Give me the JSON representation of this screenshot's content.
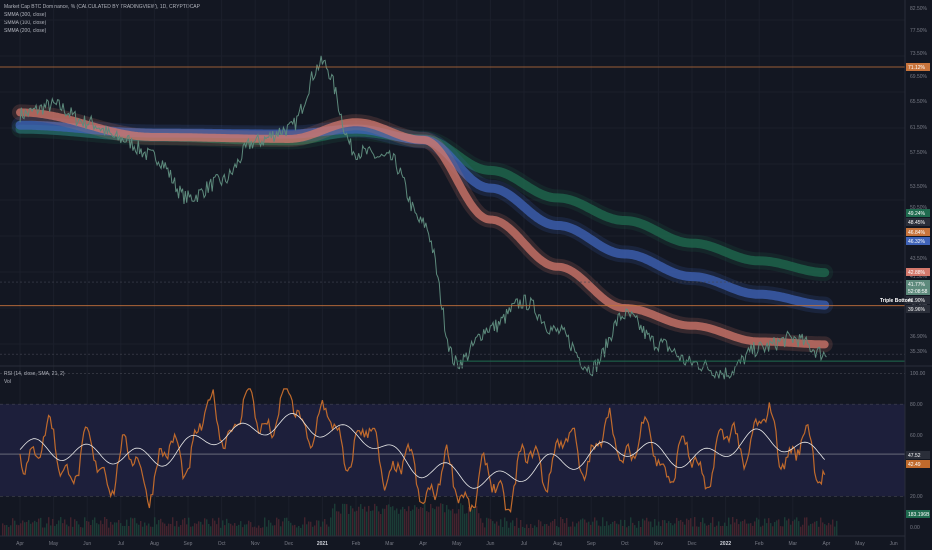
{
  "header": {
    "title": "Market Cap BTC Dominance, % (CALCULATED BY TRADINGVIEW), 1D, CRYPTOCAP",
    "indicators": [
      "SMMA (300, close)",
      "SMMA (100, close)",
      "SMMA (200, close)"
    ]
  },
  "rsi_header": {
    "title": "RSI (14, close, SMA, 21, 2)",
    "vol": "Vol"
  },
  "annotation": {
    "triple_bottom": "Triple Bottom"
  },
  "colors": {
    "background": "#131722",
    "price": "#5d8a7c",
    "smma100": "#d4786c",
    "smma200": "#3f63b8",
    "smma300": "#1f6b4f",
    "resistance": "#c8743c",
    "rsi": "#c06a2c",
    "rsi_ma": "#e8e8e8",
    "rsi_band": "#1d1f3b"
  },
  "price_axis": {
    "ticks": [
      "82.50%",
      "77.50%",
      "73.50%",
      "69.50%",
      "65.50%",
      "61.50%",
      "57.50%",
      "53.50%",
      "50.50%",
      "46.50%",
      "43.50%",
      "41.50%",
      "38.50%",
      "36.90%",
      "35.30%"
    ],
    "badges": [
      {
        "text": "71.12%",
        "color": "#c8743c"
      },
      {
        "text": "49.24%",
        "color": "#1f6b4f"
      },
      {
        "text": "48.45%",
        "color": "#2a2e39"
      },
      {
        "text": "46.84%",
        "color": "#c8743c"
      },
      {
        "text": "46.32%",
        "color": "#3f63b8"
      },
      {
        "text": "42.88%",
        "color": "#d4786c"
      },
      {
        "text": "41.77%",
        "color": "#5d8a7c"
      },
      {
        "text": "52:08:58",
        "color": "#5d8a7c"
      },
      {
        "text": "41.90%",
        "color": "#2a2e39"
      },
      {
        "text": "39.96%",
        "color": "#2a2e39"
      }
    ]
  },
  "rsi_axis": {
    "ticks": [
      "100.00",
      "80.00",
      "60.00",
      "20.00",
      "0.00"
    ],
    "badges": [
      {
        "text": "47.52",
        "color": "#2a2e39"
      },
      {
        "text": "42.49",
        "color": "#c06a2c"
      },
      {
        "text": "183.196B",
        "color": "#1f6b4f"
      }
    ]
  },
  "time_axis": [
    "Apr",
    "May",
    "Jun",
    "Jul",
    "Aug",
    "Sep",
    "Oct",
    "Nov",
    "Dec",
    "2021",
    "Feb",
    "Mar",
    "Apr",
    "May",
    "Jun",
    "Jul",
    "Aug",
    "Sep",
    "Oct",
    "Nov",
    "Dec",
    "2022",
    "Feb",
    "Mar",
    "Apr",
    "May",
    "Jun"
  ],
  "chart_data": {
    "type": "line",
    "series": [
      {
        "name": "SMMA (300, close)",
        "x": [
          "Apr 2020",
          "Aug 2020",
          "Dec 2020",
          "Feb 2021",
          "Apr 2021",
          "Jun 2021",
          "Aug 2021",
          "Oct 2021",
          "Dec 2021",
          "Feb 2022",
          "Apr 2022"
        ],
        "values": [
          64.8,
          64.0,
          63.6,
          64.5,
          63.8,
          60.6,
          57.8,
          55.5,
          53.2,
          51.4,
          50.2
        ]
      },
      {
        "name": "SMMA (200, close)",
        "x": [
          "Apr 2020",
          "Aug 2020",
          "Dec 2020",
          "Feb 2021",
          "Apr 2021",
          "Jun 2021",
          "Aug 2021",
          "Oct 2021",
          "Dec 2021",
          "Feb 2022",
          "Apr 2022"
        ],
        "values": [
          65.2,
          64.4,
          64.3,
          64.8,
          63.7,
          58.8,
          55.0,
          52.1,
          49.8,
          48.0,
          46.9
        ]
      },
      {
        "name": "SMMA (100, close)",
        "x": [
          "Apr 2020",
          "Aug 2020",
          "Dec 2020",
          "Feb 2021",
          "Apr 2021",
          "Jun 2021",
          "Aug 2021",
          "Oct 2021",
          "Dec 2021",
          "Feb 2022",
          "Apr 2022"
        ],
        "values": [
          66.5,
          64.0,
          63.8,
          65.5,
          63.7,
          55.6,
          50.8,
          46.6,
          44.8,
          43.2,
          42.9
        ]
      },
      {
        "name": "BTC Dominance",
        "x": [
          "Apr 2020",
          "May 2020",
          "Jun 2020",
          "Jul 2020",
          "Aug 2020",
          "Sep 2020",
          "Oct 2020",
          "Nov 2020",
          "Dec 2020",
          "Jan 2021",
          "Feb 2021",
          "Mar 2021",
          "Apr 2021",
          "May 2021",
          "Jun 2021",
          "Jul 2021",
          "Aug 2021",
          "Sep 2021",
          "Oct 2021",
          "Nov 2021",
          "Dec 2021",
          "Jan 2022",
          "Feb 2022",
          "Mar 2022",
          "Apr 2022"
        ],
        "values": [
          66.3,
          67.2,
          65.5,
          63.8,
          62.0,
          57.8,
          59.5,
          63.5,
          64.8,
          71.5,
          62.5,
          61.8,
          55.2,
          41.0,
          44.6,
          47.2,
          44.2,
          40.5,
          45.9,
          43.0,
          41.0,
          40.0,
          42.5,
          43.5,
          41.9
        ]
      }
    ],
    "resistance_levels": [
      71.12,
      46.84
    ],
    "support_level": 41.2,
    "rsi": {
      "x": [
        "Apr 2020",
        "Jun 2020",
        "Aug 2020",
        "Oct 2020",
        "Dec 2020",
        "Feb 2021",
        "Apr 2021",
        "Jun 2021",
        "Aug 2021",
        "Oct 2021",
        "Dec 2021",
        "Feb 2022",
        "Apr 2022"
      ],
      "values": [
        55,
        42,
        38,
        70,
        75,
        55,
        30,
        25,
        48,
        56,
        40,
        62,
        42
      ],
      "ma_values": [
        52,
        48,
        45,
        60,
        68,
        60,
        38,
        30,
        42,
        52,
        44,
        58,
        47
      ],
      "levels": [
        80,
        20
      ]
    }
  }
}
